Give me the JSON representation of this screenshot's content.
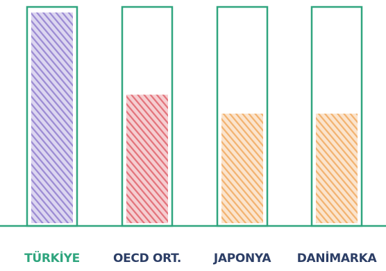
{
  "chart_data": {
    "type": "bar",
    "categories": [
      "TÜRKİYE",
      "OECD ORT.",
      "JAPONYA",
      "DANİMARKA"
    ],
    "values": [
      100,
      61,
      52,
      52
    ],
    "ylim": [
      0,
      100
    ],
    "grid": false,
    "legend": "none",
    "title": "",
    "xlabel": "",
    "ylabel": ""
  },
  "colors": {
    "frame": "#2fa57e",
    "baseline": "#2fa57e",
    "bars": [
      "#9b8ad3",
      "#e3727a",
      "#f2b26f",
      "#f2b26f"
    ],
    "labels": [
      "#2fa57e",
      "#2c3e66",
      "#2c3e66",
      "#2c3e66"
    ]
  }
}
